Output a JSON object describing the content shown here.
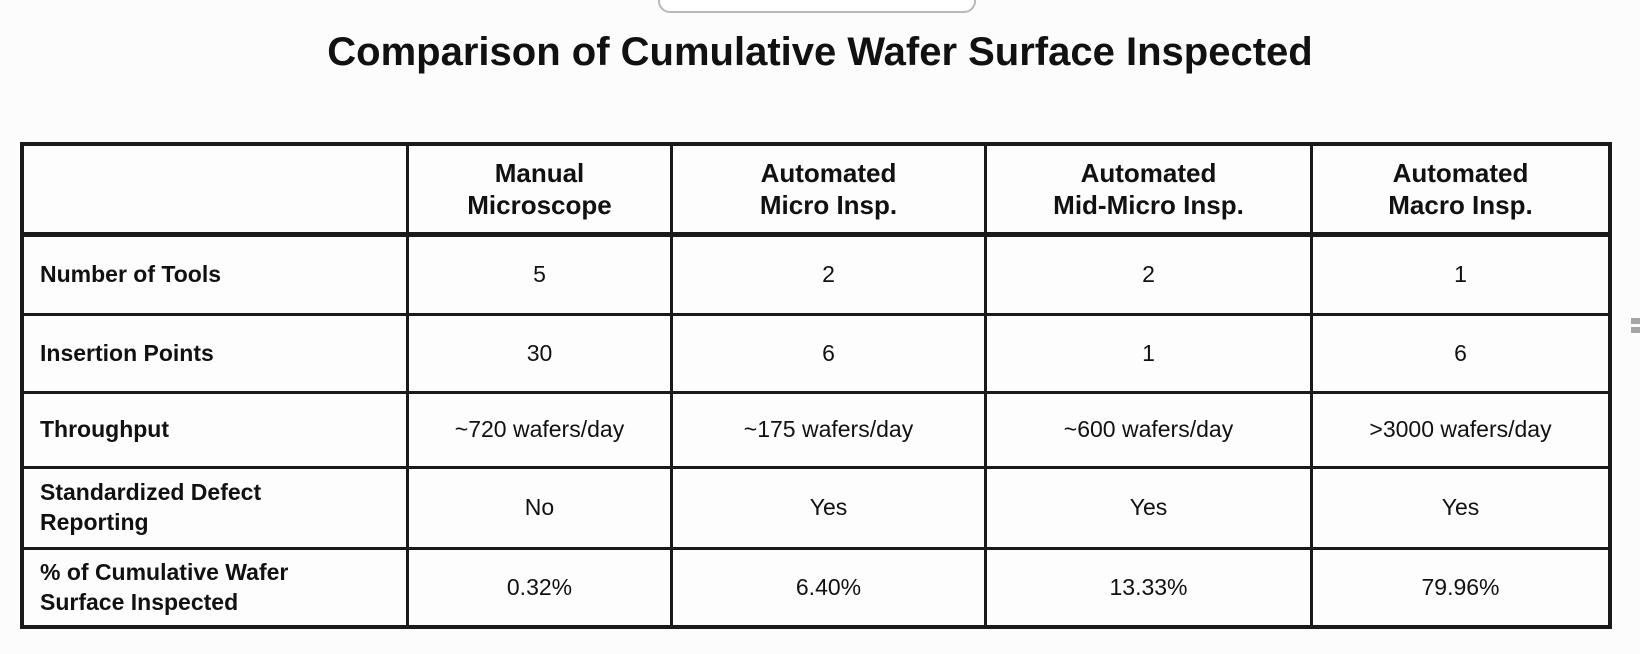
{
  "title": "Comparison of Cumulative Wafer Surface Inspected",
  "table": {
    "columns": [
      "",
      "Manual\nMicroscope",
      "Automated\nMicro Insp.",
      "Automated\nMid-Micro Insp.",
      "Automated\nMacro Insp."
    ],
    "rows": [
      {
        "label": "Number of Tools",
        "values": [
          "5",
          "2",
          "2",
          "1"
        ]
      },
      {
        "label": "Insertion Points",
        "values": [
          "30",
          "6",
          "1",
          "6"
        ]
      },
      {
        "label": "Throughput",
        "values": [
          "~720 wafers/day",
          "~175 wafers/day",
          "~600 wafers/day",
          ">3000 wafers/day"
        ]
      },
      {
        "label": "Standardized Defect\nReporting",
        "values": [
          "No",
          "Yes",
          "Yes",
          "Yes"
        ]
      },
      {
        "label": "% of Cumulative Wafer\nSurface Inspected",
        "values": [
          "0.32%",
          "6.40%",
          "13.33%",
          "79.96%"
        ]
      }
    ]
  },
  "colors": {
    "table_border": "#1a1a1a",
    "text": "#111111",
    "background": "#fcfcfc",
    "popup_border": "#b9b9b9",
    "artifact_mark": "#a5a5a5"
  }
}
